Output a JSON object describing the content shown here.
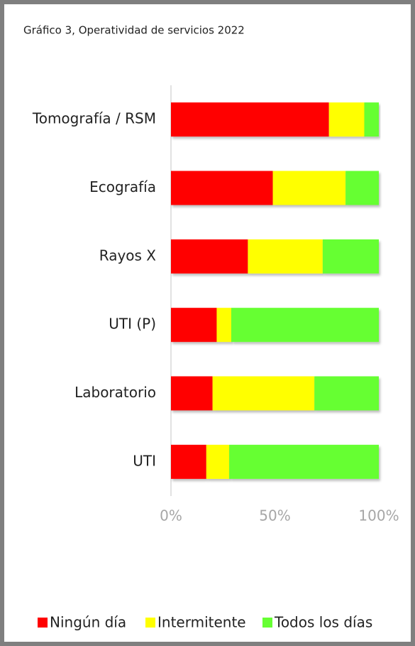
{
  "chart_data": {
    "type": "stacked-bar",
    "orientation": "horizontal",
    "title": "Gráfico 3, Operatividad de servicios 2022",
    "categories": [
      "Tomografía / RSM",
      "Ecografía",
      "Rayos X",
      "UTI (P)",
      "Laboratorio",
      "UTI"
    ],
    "series": [
      {
        "name": "Ningún día",
        "color": "#ff0000",
        "values": [
          76,
          49,
          37,
          22,
          20,
          17
        ]
      },
      {
        "name": "Intermitente",
        "color": "#ffff00",
        "values": [
          17,
          35,
          36,
          7,
          49,
          11
        ]
      },
      {
        "name": "Todos los días",
        "color": "#66ff33",
        "values": [
          7,
          16,
          27,
          71,
          31,
          72
        ]
      }
    ],
    "xlim": [
      0,
      100
    ],
    "xticks": [
      {
        "value": 0,
        "label": "0%"
      },
      {
        "value": 50,
        "label": "50%"
      },
      {
        "value": 100,
        "label": "100%"
      }
    ],
    "legend": "bottom"
  }
}
